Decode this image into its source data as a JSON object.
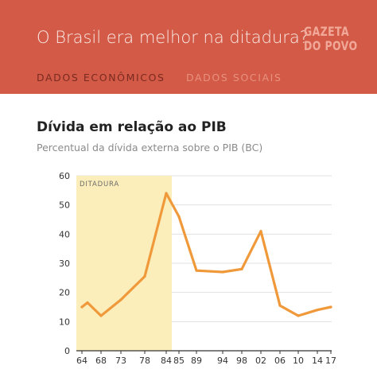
{
  "header": {
    "title": "O Brasil era melhor na ditadura?",
    "logo_line1": "GAZETA",
    "logo_line2": "DO POVO",
    "tabs": [
      {
        "label": "DADOS ECONÔMICOS",
        "active": true
      },
      {
        "label": "DADOS SOCIAIS",
        "active": false
      }
    ]
  },
  "colors": {
    "header_bg": "#d25a47",
    "line": "#f0993a",
    "highlight": "#fbeebb"
  },
  "chart_data": {
    "type": "line",
    "title": "Dívida em relação ao PIB",
    "subtitle": "Percentual da dívida externa sobre o PIB (BC)",
    "x_ticks": [
      "64",
      "68",
      "73",
      "78",
      "84",
      "85",
      "89",
      "94",
      "98",
      "02",
      "06",
      "10",
      "14",
      "17"
    ],
    "y_ticks": [
      "0",
      "10",
      "20",
      "30",
      "40",
      "50",
      "60"
    ],
    "ylim": [
      0,
      60
    ],
    "highlight": {
      "label": "DITADURA",
      "from": "64",
      "to": "85"
    },
    "series": [
      {
        "values": [
          {
            "x": "64",
            "y": 15
          },
          {
            "x": "66",
            "y": 16.5
          },
          {
            "x": "68",
            "y": 12
          },
          {
            "x": "73",
            "y": 17.5
          },
          {
            "x": "78",
            "y": 25.5
          },
          {
            "x": "84",
            "y": 54
          },
          {
            "x": "85",
            "y": 46
          },
          {
            "x": "89",
            "y": 27.5
          },
          {
            "x": "94",
            "y": 27
          },
          {
            "x": "98",
            "y": 28
          },
          {
            "x": "02",
            "y": 41
          },
          {
            "x": "06",
            "y": 15.5
          },
          {
            "x": "10",
            "y": 12
          },
          {
            "x": "14",
            "y": 14
          },
          {
            "x": "17",
            "y": 15
          }
        ]
      }
    ]
  }
}
